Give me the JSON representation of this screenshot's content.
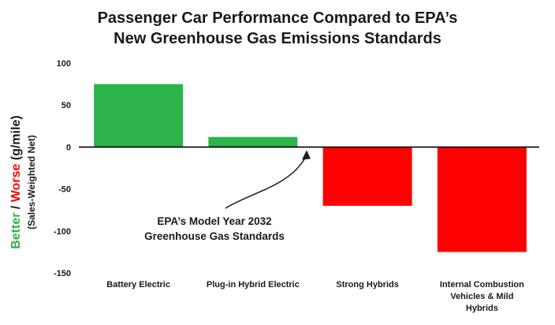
{
  "chart_data": {
    "type": "bar",
    "title_lines": [
      "Passenger Car Performance Compared to EPA’s",
      "New Greenhouse Gas Emissions Standards"
    ],
    "categories": [
      [
        "Battery Electric"
      ],
      [
        "Plug-in Hybrid Electric"
      ],
      [
        "Strong Hybrids"
      ],
      [
        "Internal Combustion",
        "Vehicles & Mild",
        "Hybrids"
      ]
    ],
    "values": [
      75,
      12,
      -70,
      -125
    ],
    "bar_colors": [
      "#2db34a",
      "#2db34a",
      "#ff0000",
      "#ff0000"
    ],
    "ylim": [
      -150,
      100
    ],
    "yticks": [
      -150,
      -100,
      -50,
      0,
      50,
      100
    ],
    "ylabel": {
      "better": "Better",
      "separator": " / ",
      "worse": "Worse",
      "units": " (g/mile)",
      "sub": "(Sales-Weighted Net)"
    },
    "colors": {
      "better": "#2db34a",
      "worse": "#ff0000",
      "text": "#1a1a1a"
    },
    "annotation": {
      "lines": [
        "EPA’s Model Year 2032",
        "Greenhouse Gas Standards"
      ],
      "points_to_value": 0
    },
    "grid": false,
    "legend": "none"
  }
}
